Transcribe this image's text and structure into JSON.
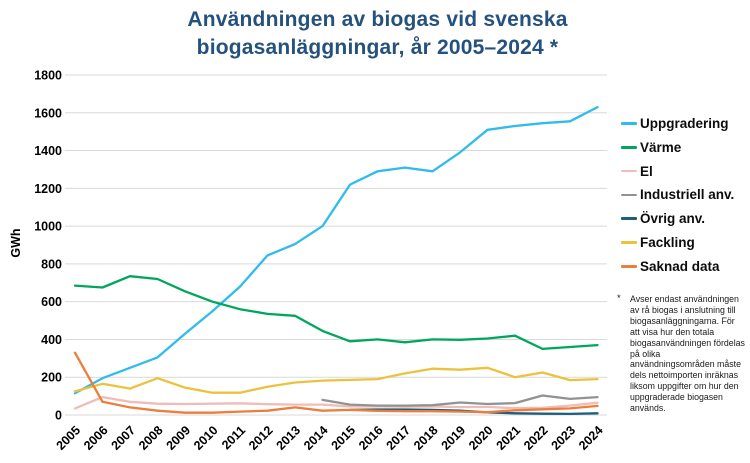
{
  "title": {
    "line1": "Användningen av biogas vid svenska",
    "line2": "biogasanläggningar, år 2005–2024 *"
  },
  "y_axis_label": "GWh",
  "footnote": {
    "marker": "*",
    "text": "Avser endast användningen av rå biogas i anslutning till biogasanläggningarna. För att visa hur den totala biogasanvändningen fördelas på olika användningsområden måste dels nettoimporten inräknas liksom uppgifter om hur den uppgraderade biogasen används."
  },
  "colors": {
    "title_text": "#25517E",
    "gridline": "#D9D9D9",
    "axis_text": "#000000"
  },
  "chart_data": {
    "type": "line",
    "title": "Användningen av biogas vid svenska biogasanläggningar, år 2005–2024 *",
    "xlabel": "",
    "ylabel": "GWh",
    "ylim": [
      0,
      1800
    ],
    "y_tick_step": 200,
    "y_ticks": [
      0,
      200,
      400,
      600,
      800,
      1000,
      1200,
      1400,
      1600,
      1800
    ],
    "grid": "horizontal",
    "legend_position": "right",
    "categories": [
      "2005",
      "2006",
      "2007",
      "2008",
      "2009",
      "2010",
      "2011",
      "2012",
      "2013",
      "2014",
      "2015",
      "2016",
      "2017",
      "2018",
      "2019",
      "2020",
      "2021",
      "2022",
      "2023",
      "2024"
    ],
    "series": [
      {
        "name": "Uppgradering",
        "color": "#2FBCEC",
        "values": [
          115,
          195,
          250,
          305,
          430,
          550,
          680,
          845,
          905,
          1000,
          1220,
          1290,
          1310,
          1290,
          1390,
          1510,
          1530,
          1545,
          1555,
          1630
        ]
      },
      {
        "name": "Värme",
        "color": "#00A65C",
        "values": [
          685,
          675,
          735,
          720,
          655,
          600,
          560,
          535,
          525,
          445,
          390,
          400,
          385,
          400,
          398,
          405,
          420,
          350,
          360,
          370
        ]
      },
      {
        "name": "El",
        "color": "#F0BCB8",
        "values": [
          35,
          95,
          70,
          60,
          58,
          60,
          62,
          57,
          55,
          55,
          45,
          45,
          44,
          45,
          42,
          43,
          36,
          38,
          50,
          65
        ]
      },
      {
        "name": "Industriell anv.",
        "color": "#929292",
        "values": [
          null,
          null,
          null,
          null,
          null,
          null,
          null,
          null,
          null,
          80,
          55,
          50,
          50,
          52,
          66,
          58,
          63,
          103,
          85,
          95
        ]
      },
      {
        "name": "Övrig anv.",
        "color": "#1F5F7E",
        "values": [
          null,
          null,
          null,
          null,
          null,
          null,
          null,
          null,
          null,
          null,
          27,
          29,
          29,
          27,
          23,
          14,
          9,
          7,
          6,
          9
        ]
      },
      {
        "name": "Fackling",
        "color": "#ECC23D",
        "values": [
          125,
          165,
          140,
          195,
          145,
          118,
          118,
          150,
          172,
          182,
          186,
          190,
          220,
          245,
          240,
          250,
          200,
          225,
          185,
          190
        ]
      },
      {
        "name": "Saknad data",
        "color": "#EC7D3C",
        "values": [
          330,
          70,
          40,
          23,
          12,
          12,
          18,
          23,
          40,
          23,
          27,
          22,
          20,
          20,
          18,
          15,
          25,
          30,
          35,
          48
        ]
      }
    ]
  }
}
